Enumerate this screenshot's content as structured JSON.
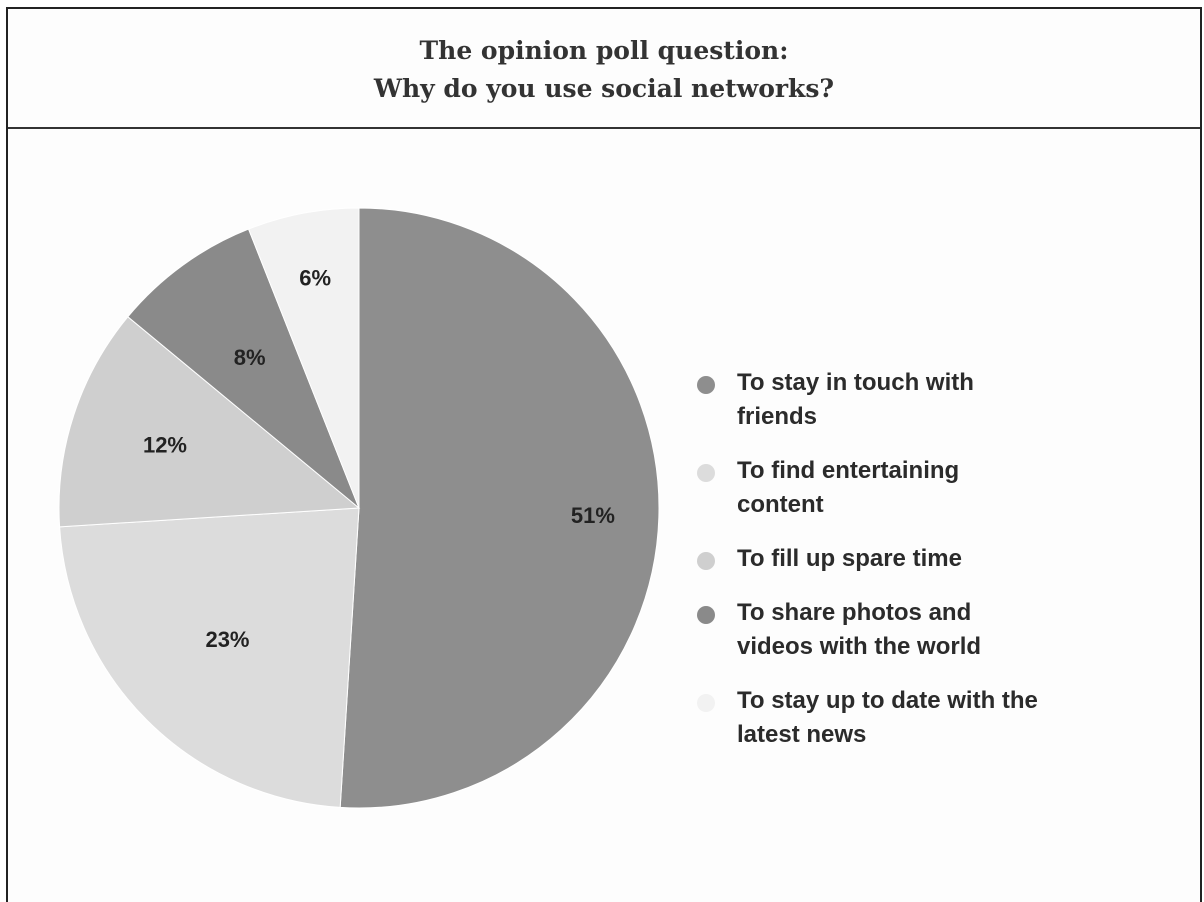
{
  "header": {
    "line1": "The opinion poll question:",
    "line2": "Why do you use social networks?"
  },
  "chart_data": {
    "type": "pie",
    "title": "The opinion poll question: Why do you use social networks?",
    "categories": [
      "To stay in touch with friends",
      "To find entertaining content",
      "To fill up spare time",
      "To share photos and videos with the world",
      "To stay up to date with the latest news"
    ],
    "values": [
      51,
      23,
      12,
      8,
      6
    ],
    "labels": [
      "51%",
      "23%",
      "12%",
      "8%",
      "6%"
    ],
    "colors": [
      "#8e8e8e",
      "#dcdcdc",
      "#cfcfcf",
      "#8a8a8a",
      "#f2f2f2"
    ],
    "start_angle": "top",
    "direction": "clockwise",
    "legend_position": "right"
  },
  "legend": {
    "items": [
      {
        "line1": "To stay in touch with",
        "line2": "friends"
      },
      {
        "line1": "To find entertaining",
        "line2": "content"
      },
      {
        "line1": "To fill up spare time",
        "line2": ""
      },
      {
        "line1": "To share photos and",
        "line2": "videos with the world"
      },
      {
        "line1": "To stay up to date with the",
        "line2": "latest news"
      }
    ]
  }
}
